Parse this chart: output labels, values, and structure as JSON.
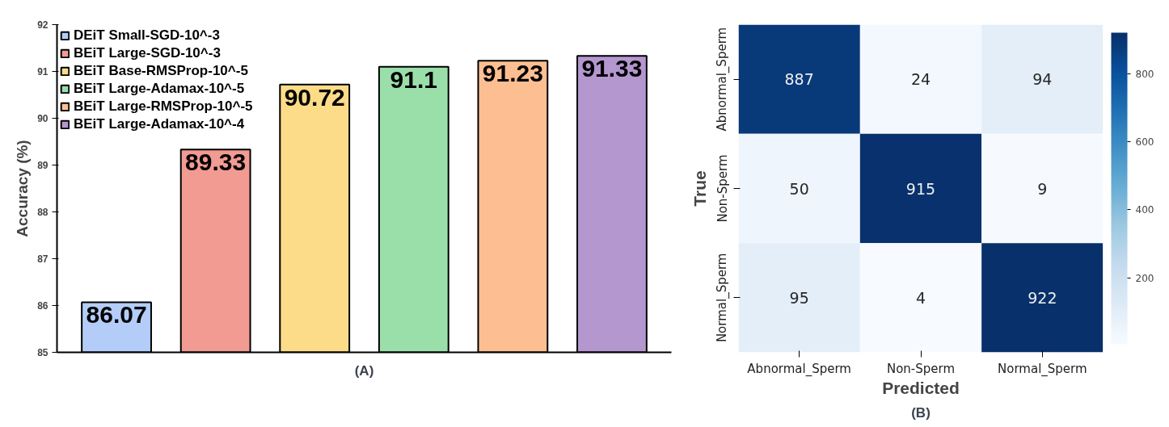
{
  "chart_data": [
    {
      "type": "bar",
      "title": "(A)",
      "ylabel": "Accuracy (%)",
      "categories": [
        null,
        null,
        null,
        null,
        null,
        null
      ],
      "series": [
        {
          "name": "DEiT Small-SGD-10^-3",
          "color": "#b3cdf8",
          "values": [
            86.07,
            null,
            null,
            null,
            null,
            null
          ]
        },
        {
          "name": "BEiT Large-SGD-10^-3",
          "color": "#f29b92",
          "values": [
            null,
            89.33,
            null,
            null,
            null,
            null
          ]
        },
        {
          "name": "BEiT Base-RMSProp-10^-5",
          "color": "#fcdc88",
          "values": [
            null,
            null,
            90.72,
            null,
            null,
            null
          ]
        },
        {
          "name": "BEiT Large-Adamax-10^-5",
          "color": "#9adfaa",
          "values": [
            null,
            null,
            null,
            91.1,
            null,
            null
          ]
        },
        {
          "name": "BEiT Large-RMSProp-10^-5",
          "color": "#fdbf92",
          "values": [
            null,
            null,
            null,
            null,
            91.23,
            null
          ]
        },
        {
          "name": "BEiT Large-Adamax-10^-4",
          "color": "#b597cf",
          "values": [
            null,
            null,
            null,
            null,
            null,
            91.33
          ]
        }
      ],
      "ylim": [
        85,
        92
      ],
      "yticks": [
        85,
        86,
        87,
        88,
        89,
        90,
        91,
        92
      ],
      "grid": false,
      "legend": "top left",
      "data_labels": true
    },
    {
      "type": "heatmap",
      "title": "(B)",
      "xlabel": "Predicted",
      "ylabel": "True",
      "categories": [
        "Abnormal_Sperm",
        "Non-Sperm",
        "Normal_Sperm"
      ],
      "y_categories": [
        "Abnormal_Sperm",
        "Non-Sperm",
        "Normal_Sperm"
      ],
      "cells": [
        [
          887,
          24,
          94
        ],
        [
          50,
          915,
          9
        ],
        [
          95,
          4,
          922
        ]
      ],
      "clim": [
        4,
        922
      ],
      "cticks": [
        200,
        400,
        600,
        800
      ],
      "data_labels": true
    }
  ]
}
